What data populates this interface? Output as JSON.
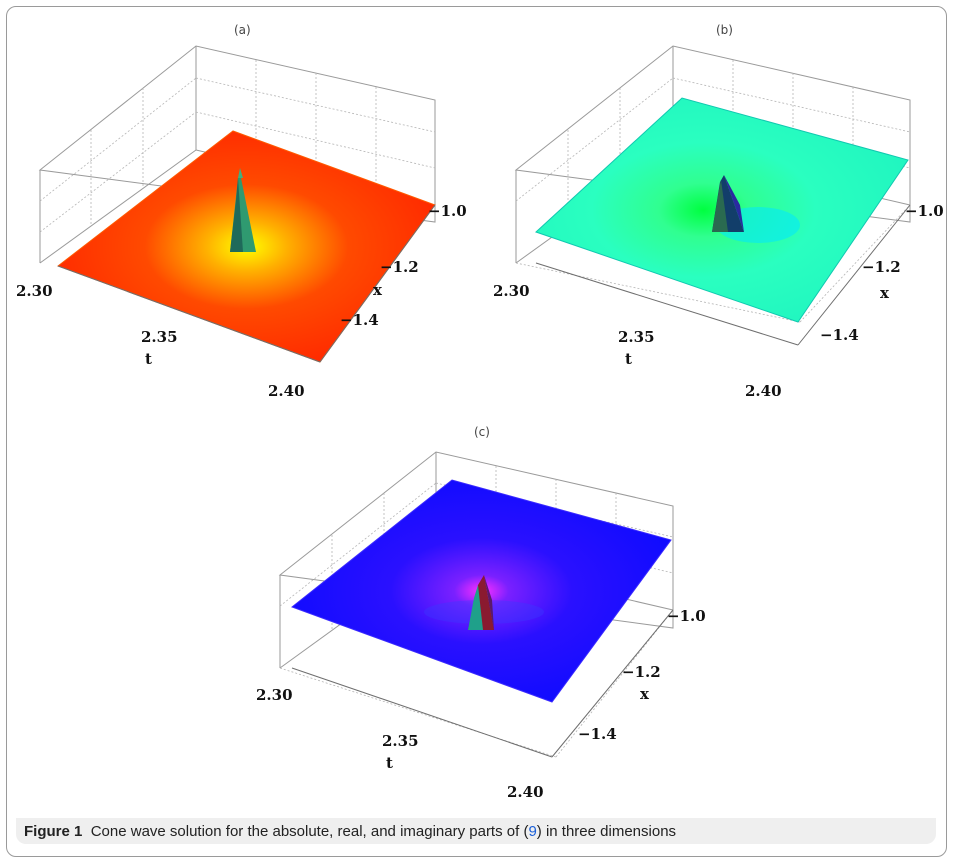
{
  "figure": {
    "caption_label": "Figure 1",
    "caption_text_before": "Cone wave solution for the absolute, real, and imaginary parts of (",
    "caption_ref": "9",
    "caption_text_after": ") in three dimensions"
  },
  "panels": [
    {
      "label": "(a)",
      "colors": {
        "surface": "#ff2a00",
        "edge": "#ff6a00",
        "glow": "#ffee00",
        "spike": "#2fa06a"
      }
    },
    {
      "label": "(b)",
      "colors": {
        "surface": "#22ffbf",
        "edge": "#1ce6c8",
        "glow": "#00ff55",
        "spike": "#10406a"
      }
    },
    {
      "label": "(c)",
      "colors": {
        "surface": "#1010ff",
        "edge": "#2a00ff",
        "glow": "#ff00ff",
        "spike": "#9a1a1a"
      }
    }
  ],
  "axes": {
    "t_label": "t",
    "x_label": "x",
    "t_ticks": [
      "2.30",
      "2.35",
      "2.40"
    ],
    "x_ticks": [
      "−1.0",
      "−1.2",
      "−1.4"
    ]
  }
}
